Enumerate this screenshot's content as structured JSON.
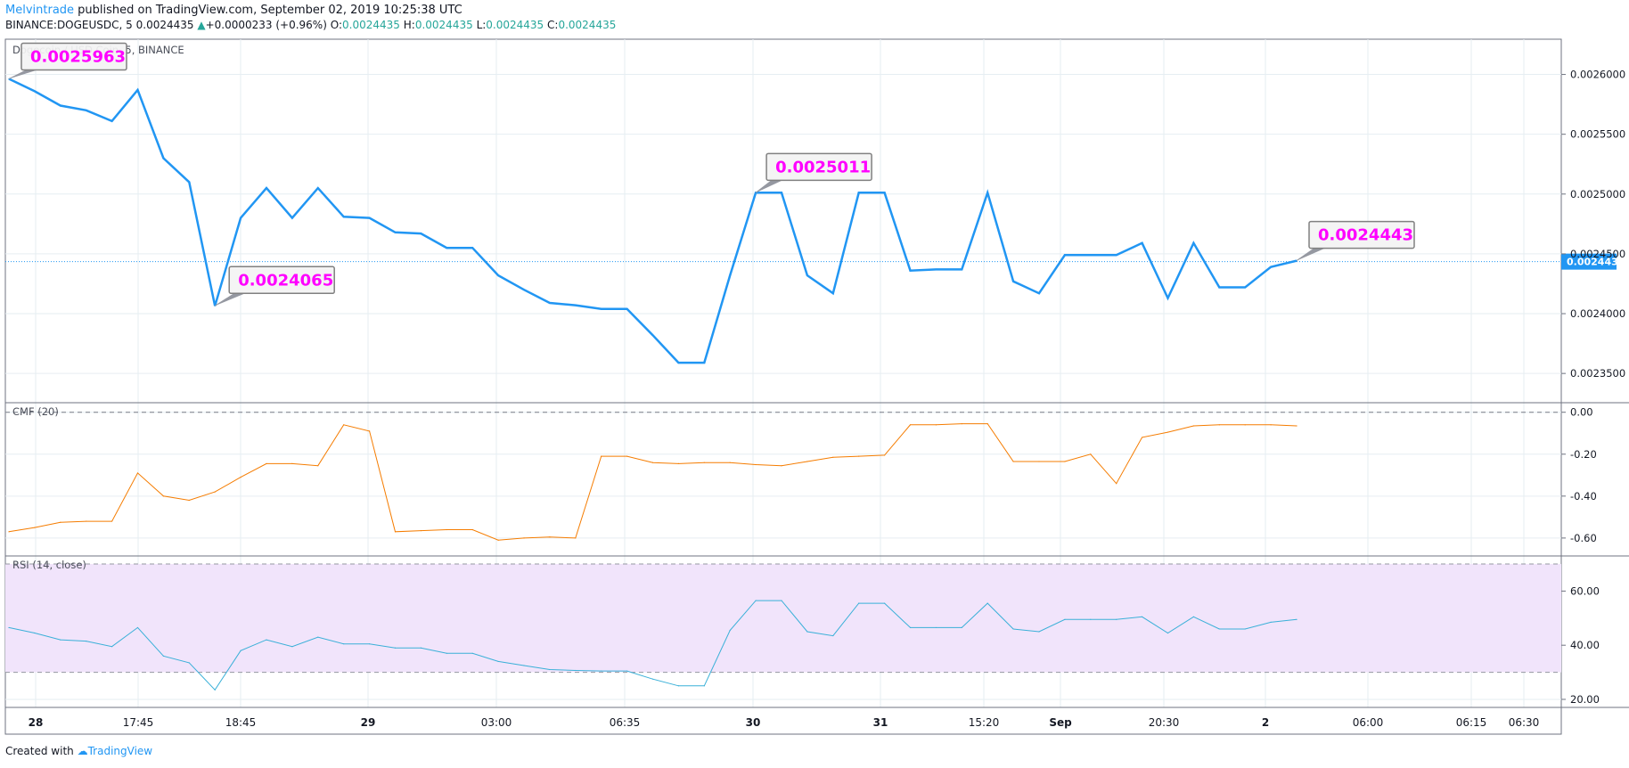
{
  "header": {
    "author": "Melvintrade",
    "published": " published on TradingView.com, September 02, 2019 10:25:38 UTC",
    "symbol": "BINANCE:DOGEUSDC, 5",
    "last": "0.0024435",
    "change": "+0.0000233 (+0.96%)",
    "o_label": "O:",
    "o": "0.0024435",
    "h_label": "H:",
    "h": "0.0024435",
    "l_label": "L:",
    "l": "0.0024435",
    "c_label": "C:",
    "c": "0.0024435"
  },
  "footer": {
    "created": "Created with",
    "brand": "TradingView"
  },
  "colors": {
    "price": "#2196f3",
    "cmf": "#f57c00",
    "rsi": "#3ab0d8",
    "rsi_band": "#f1e4fb",
    "callout_text": "#ff00ff",
    "price_tag": "#2196f3"
  },
  "chart_data": [
    {
      "type": "line",
      "title": "Dogecoin / USD Coin, 5, BINANCE",
      "ylim": [
        0.00233,
        0.002625
      ],
      "yticks": [
        "0.0023500",
        "0.0024000",
        "0.0024500",
        "0.0025000",
        "0.0025500",
        "0.0026000"
      ],
      "current_price_label": "0.0024435",
      "current_price": 0.0024435,
      "series": [
        {
          "values": [
            0.0025963,
            0.002586,
            0.002574,
            0.00257,
            0.002561,
            0.002587,
            0.00253,
            0.00251,
            0.0024065,
            0.00248,
            0.002505,
            0.00248,
            0.002505,
            0.002481,
            0.00248,
            0.002468,
            0.002467,
            0.002455,
            0.002455,
            0.002432,
            0.00242,
            0.002409,
            0.002407,
            0.002404,
            0.002404,
            0.002382,
            0.002359,
            0.002359,
            0.002432,
            0.0025011,
            0.0025011,
            0.002432,
            0.002417,
            0.0025011,
            0.0025011,
            0.002436,
            0.002437,
            0.002437,
            0.0025011,
            0.002427,
            0.002417,
            0.002449,
            0.002449,
            0.002449,
            0.002459,
            0.002413,
            0.002459,
            0.002422,
            0.002422,
            0.002439,
            0.0024443
          ]
        }
      ],
      "annotations": [
        {
          "label": "0.0025963",
          "index": 0
        },
        {
          "label": "0.0024065",
          "index": 8
        },
        {
          "label": "0.0025011",
          "index": 29
        },
        {
          "label": "0.0024443",
          "index": 50
        }
      ]
    },
    {
      "type": "line",
      "title": "CMF (20)",
      "ylim": [
        -0.66,
        0.02
      ],
      "yticks": [
        "0.00",
        "-0.20",
        "-0.40",
        "-0.60"
      ],
      "series": [
        {
          "values": [
            -0.57,
            -0.55,
            -0.525,
            -0.52,
            -0.52,
            -0.29,
            -0.4,
            -0.42,
            -0.38,
            -0.31,
            -0.245,
            -0.245,
            -0.255,
            -0.06,
            -0.09,
            -0.57,
            -0.565,
            -0.56,
            -0.56,
            -0.61,
            -0.6,
            -0.595,
            -0.6,
            -0.21,
            -0.21,
            -0.24,
            -0.245,
            -0.24,
            -0.24,
            -0.25,
            -0.255,
            -0.235,
            -0.215,
            -0.21,
            -0.205,
            -0.06,
            -0.06,
            -0.055,
            -0.055,
            -0.235,
            -0.235,
            -0.235,
            -0.2,
            -0.34,
            -0.12,
            -0.095,
            -0.065,
            -0.06,
            -0.06,
            -0.06,
            -0.065
          ]
        }
      ]
    },
    {
      "type": "line",
      "title": "RSI (14, close)",
      "ylim": [
        19,
        71
      ],
      "bands": [
        30,
        70
      ],
      "yticks": [
        "60.00",
        "40.00",
        "20.00"
      ],
      "series": [
        {
          "values": [
            46.5,
            44.5,
            42,
            41.5,
            39.5,
            46.5,
            36,
            33.5,
            23.5,
            38,
            42,
            39.5,
            43,
            40.5,
            40.5,
            39,
            39,
            37,
            37,
            34,
            32.5,
            31,
            30.7,
            30.5,
            30.5,
            27.5,
            25,
            25,
            45.5,
            56.5,
            56.5,
            45,
            43.5,
            55.5,
            55.5,
            46.5,
            46.5,
            46.5,
            55.5,
            46,
            45,
            49.5,
            49.5,
            49.5,
            50.5,
            44.5,
            50.5,
            46,
            46,
            48.5,
            49.5
          ]
        }
      ]
    }
  ],
  "xaxis": {
    "labels": [
      "28",
      "17:45",
      "18:45",
      "29",
      "03:00",
      "06:35",
      "30",
      "31",
      "15:20",
      "Sep",
      "20:30",
      "2",
      "06:00",
      "06:15",
      "06:30"
    ],
    "bold": [
      "28",
      "29",
      "30",
      "31",
      "Sep",
      "2"
    ]
  }
}
